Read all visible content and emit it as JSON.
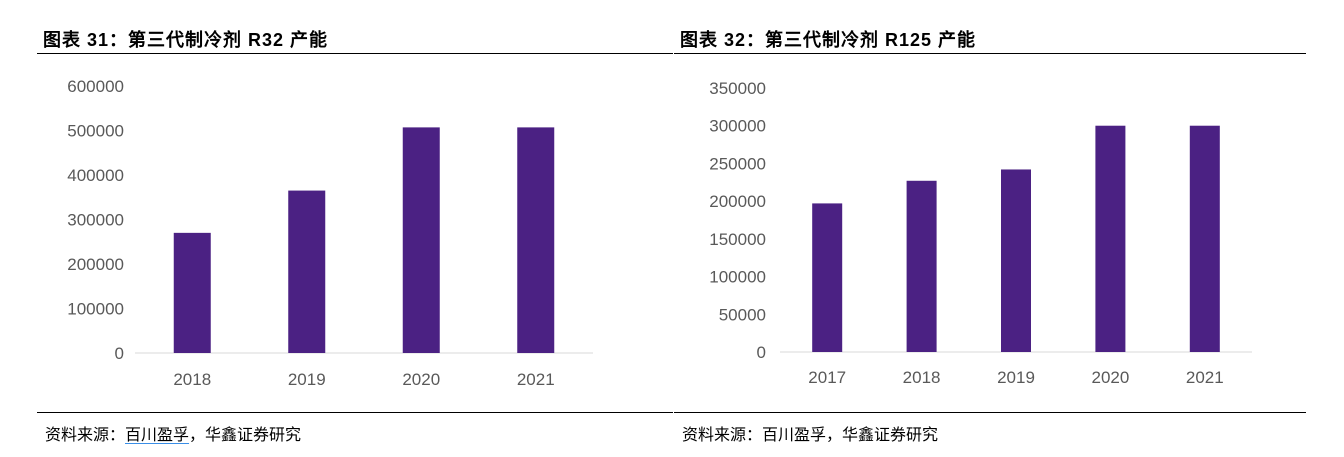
{
  "charts": [
    {
      "title": "图表 31：第三代制冷剂 R32 产能",
      "source": {
        "prefix": "资料来源：",
        "link": "百川盈孚",
        "suffix": "，华鑫证券研究"
      }
    },
    {
      "title": "图表 32：第三代制冷剂 R125 产能",
      "source": {
        "prefix": "资料来源：",
        "link": "百川盈孚",
        "suffix": "，华鑫证券研究"
      }
    }
  ],
  "chart_data": [
    {
      "type": "bar",
      "title": "图表 31：第三代制冷剂 R32 产能",
      "categories": [
        "2018",
        "2019",
        "2020",
        "2021"
      ],
      "values": [
        270000,
        365000,
        507000,
        507000
      ],
      "ylim": [
        0,
        600000
      ],
      "yticks": [
        "0",
        "100000",
        "200000",
        "300000",
        "400000",
        "500000",
        "600000"
      ],
      "xlabel": "",
      "ylabel": "",
      "grid": false,
      "bar_color": "#4b2183"
    },
    {
      "type": "bar",
      "title": "图表 32：第三代制冷剂 R125 产能",
      "categories": [
        "2017",
        "2018",
        "2019",
        "2020",
        "2021"
      ],
      "values": [
        197000,
        227000,
        242000,
        300000,
        300000
      ],
      "ylim": [
        0,
        350000
      ],
      "yticks": [
        "0",
        "50000",
        "100000",
        "150000",
        "200000",
        "250000",
        "300000",
        "350000"
      ],
      "xlabel": "",
      "ylabel": "",
      "grid": false,
      "bar_color": "#4b2183"
    }
  ]
}
